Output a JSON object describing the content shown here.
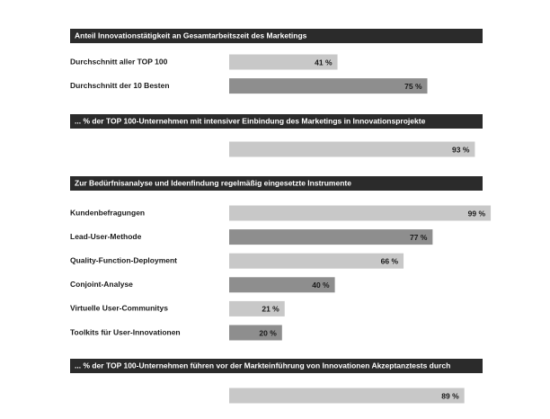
{
  "chart_data": [
    {
      "type": "bar",
      "title": "Anteil Innovationstätigkeit an Gesamtarbeitszeit des Marketings",
      "categories": [
        "Durchschnitt aller TOP 100",
        "Durchschnitt der 10 Besten"
      ],
      "values": [
        41,
        75
      ],
      "value_labels": [
        "41 %",
        "75 %"
      ],
      "colors": [
        "#c8c8c8",
        "#8e8e8e"
      ],
      "xlim": [
        0,
        100
      ]
    },
    {
      "type": "bar",
      "title": "... % der TOP 100-Unternehmen mit intensiver Einbindung des Marketings in Innovationsprojekte",
      "categories": [
        null
      ],
      "values": [
        93
      ],
      "value_labels": [
        "93 %"
      ],
      "colors": [
        "#c8c8c8"
      ],
      "xlim": [
        0,
        100
      ]
    },
    {
      "type": "bar",
      "title": "Zur Bedürfnisanalyse und Ideenfindung regelmäßig eingesetzte Instrumente",
      "categories": [
        "Kundenbefragungen",
        "Lead-User-Methode",
        "Quality-Function-Deployment",
        "Conjoint-Analyse",
        "Virtuelle User-Communitys",
        "Toolkits für User-Innovationen"
      ],
      "values": [
        99,
        77,
        66,
        40,
        21,
        20
      ],
      "value_labels": [
        "99 %",
        "77 %",
        "66 %",
        "40 %",
        "21 %",
        "20 %"
      ],
      "colors": [
        "#c8c8c8",
        "#8e8e8e",
        "#c8c8c8",
        "#8e8e8e",
        "#c8c8c8",
        "#8e8e8e"
      ],
      "xlim": [
        0,
        100
      ]
    },
    {
      "type": "bar",
      "title": "... % der TOP 100-Unternehmen führen vor der Markteinführung von Innovationen Akzeptanztests durch",
      "categories": [
        null
      ],
      "values": [
        89
      ],
      "value_labels": [
        "89 %"
      ],
      "colors": [
        "#c8c8c8"
      ],
      "xlim": [
        0,
        100
      ]
    }
  ]
}
